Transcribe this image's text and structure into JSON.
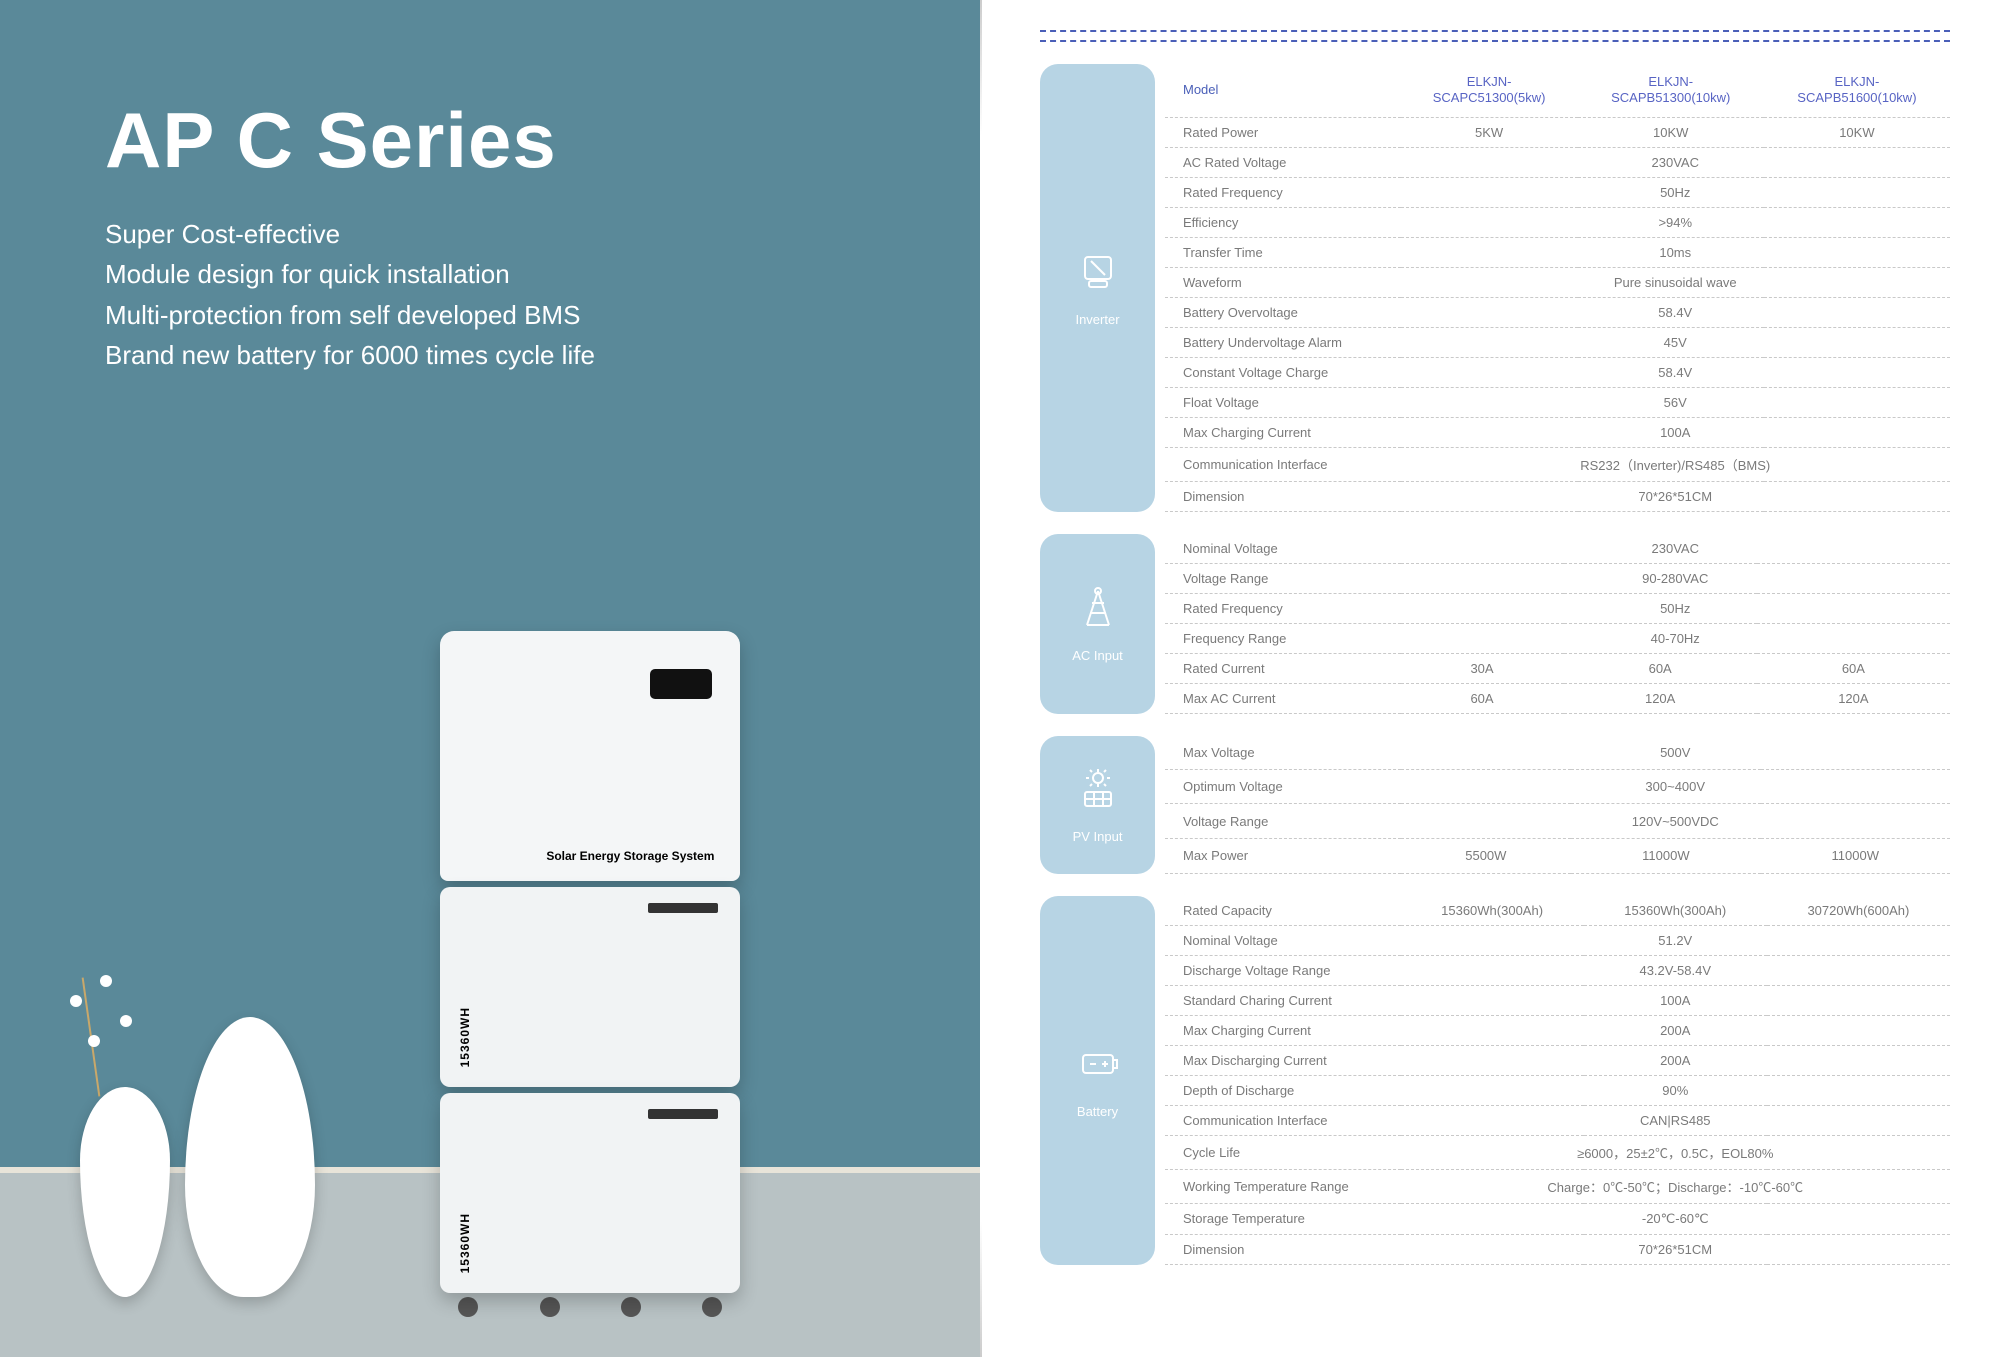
{
  "left": {
    "title": "AP C Series",
    "features": [
      "Super Cost-effective",
      "Module design for quick installation",
      "Multi-protection from self developed BMS",
      "Brand new battery for 6000 times cycle life"
    ],
    "product_label": "Solar Energy Storage System",
    "module_wh": "15360WH"
  },
  "colors": {
    "accent_blue": "#4a5fb8",
    "icon_bg": "#b7d4e4",
    "wall": "#5a8999",
    "text_grey": "#7a7a7a"
  },
  "models": {
    "label": "Model",
    "items": [
      "ELKJN-\nSCAPC51300(5kw)",
      "ELKJN-\nSCAPB51300(10kw)",
      "ELKJN-\nSCAPB51600(10kw)"
    ]
  },
  "sections": [
    {
      "id": "inverter",
      "label": "Inverter",
      "icon": "inverter",
      "has_header": true,
      "rows": [
        {
          "label": "Rated Power",
          "v": [
            "5KW",
            "10KW",
            "10KW"
          ]
        },
        {
          "label": "AC Rated Voltage",
          "v": [
            "230VAC"
          ]
        },
        {
          "label": "Rated Frequency",
          "v": [
            "50Hz"
          ]
        },
        {
          "label": "Efficiency",
          "v": [
            ">94%"
          ]
        },
        {
          "label": "Transfer Time",
          "v": [
            "10ms"
          ]
        },
        {
          "label": "Waveform",
          "v": [
            "Pure sinusoidal wave"
          ]
        },
        {
          "label": "Battery Overvoltage",
          "v": [
            "58.4V"
          ]
        },
        {
          "label": "Battery Undervoltage Alarm",
          "v": [
            "45V"
          ]
        },
        {
          "label": "Constant Voltage Charge",
          "v": [
            "58.4V"
          ]
        },
        {
          "label": "Float Voltage",
          "v": [
            "56V"
          ]
        },
        {
          "label": "Max Charging Current",
          "v": [
            "100A"
          ]
        },
        {
          "label": "Communication Interface",
          "v": [
            "RS232（Inverter)/RS485（BMS)"
          ]
        },
        {
          "label": "Dimension",
          "v": [
            "70*26*51CM"
          ]
        }
      ]
    },
    {
      "id": "acinput",
      "label": "AC  Input",
      "icon": "tower",
      "rows": [
        {
          "label": "Nominal Voltage",
          "v": [
            "230VAC"
          ]
        },
        {
          "label": "Voltage Range",
          "v": [
            "90-280VAC"
          ]
        },
        {
          "label": "Rated Frequency",
          "v": [
            "50Hz"
          ]
        },
        {
          "label": "Frequency Range",
          "v": [
            "40-70Hz"
          ]
        },
        {
          "label": "Rated Current",
          "v": [
            "30A",
            "60A",
            "60A"
          ]
        },
        {
          "label": "Max AC Current",
          "v": [
            "60A",
            "120A",
            "120A"
          ]
        }
      ]
    },
    {
      "id": "pvinput",
      "label": "PV  Input",
      "icon": "solar",
      "rows": [
        {
          "label": "Max Voltage",
          "v": [
            "500V"
          ]
        },
        {
          "label": "Optimum Voltage",
          "v": [
            "300~400V"
          ]
        },
        {
          "label": "Voltage Range",
          "v": [
            "120V~500VDC"
          ]
        },
        {
          "label": "Max Power",
          "v": [
            "5500W",
            "11000W",
            "11000W"
          ]
        }
      ]
    },
    {
      "id": "battery",
      "label": "Battery",
      "icon": "battery",
      "rows": [
        {
          "label": "Rated Capacity",
          "v": [
            "15360Wh(300Ah)",
            "15360Wh(300Ah)",
            "30720Wh(600Ah)"
          ]
        },
        {
          "label": "Nominal Voltage",
          "v": [
            "51.2V"
          ]
        },
        {
          "label": "Discharge Voltage Range",
          "v": [
            "43.2V-58.4V"
          ]
        },
        {
          "label": "Standard Charing Current",
          "v": [
            "100A"
          ]
        },
        {
          "label": "Max Charging Current",
          "v": [
            "200A"
          ]
        },
        {
          "label": "Max Discharging Current",
          "v": [
            "200A"
          ]
        },
        {
          "label": "Depth of Discharge",
          "v": [
            "90%"
          ]
        },
        {
          "label": "Communication Interface",
          "v": [
            "CAN|RS485"
          ]
        },
        {
          "label": "Cycle Life",
          "v": [
            "≥6000，25±2℃，0.5C，EOL80%"
          ]
        },
        {
          "label": "Working Temperature Range",
          "v": [
            "Charge：0℃-50℃；Discharge：-10℃-60℃"
          ]
        },
        {
          "label": "Storage Temperature",
          "v": [
            "-20℃-60℃"
          ]
        },
        {
          "label": "Dimension",
          "v": [
            "70*26*51CM"
          ]
        }
      ]
    }
  ]
}
